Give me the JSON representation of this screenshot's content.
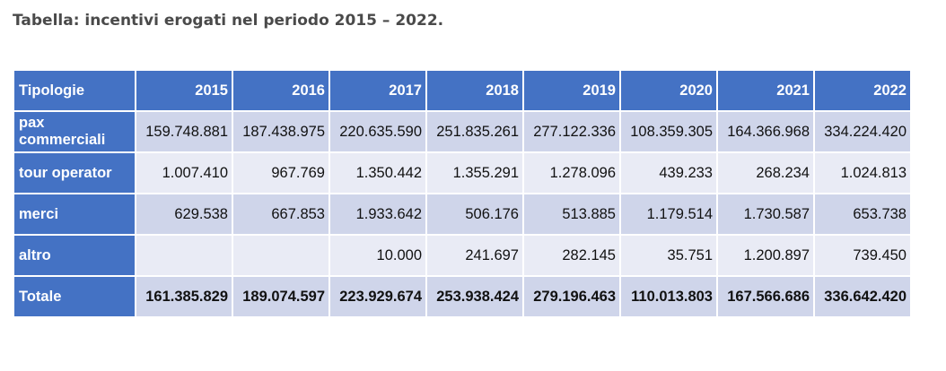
{
  "caption": "Tabella: incentivi erogati nel periodo 2015 – 2022.",
  "table": {
    "headers": [
      "Tipologie",
      "2015",
      "2016",
      "2017",
      "2018",
      "2019",
      "2020",
      "2021",
      "2022"
    ],
    "rows": [
      {
        "label": "pax commerciali",
        "values": [
          "159.748.881",
          "187.438.975",
          "220.635.590",
          "251.835.261",
          "277.122.336",
          "108.359.305",
          "164.366.968",
          "334.224.420"
        ]
      },
      {
        "label": "tour operator",
        "values": [
          "1.007.410",
          "967.769",
          "1.350.442",
          "1.355.291",
          "1.278.096",
          "439.233",
          "268.234",
          "1.024.813"
        ]
      },
      {
        "label": "merci",
        "values": [
          "629.538",
          "667.853",
          "1.933.642",
          "506.176",
          "513.885",
          "1.179.514",
          "1.730.587",
          "653.738"
        ]
      },
      {
        "label": "altro",
        "values": [
          "",
          "",
          "10.000",
          "241.697",
          "282.145",
          "35.751",
          "1.200.897",
          "739.450"
        ]
      },
      {
        "label": "Totale",
        "values": [
          "161.385.829",
          "189.074.597",
          "223.929.674",
          "253.938.424",
          "279.196.463",
          "110.013.803",
          "167.566.686",
          "336.642.420"
        ]
      }
    ]
  },
  "colors": {
    "header_bg": "#4472c4",
    "row_odd_bg": "#cfd5ea",
    "row_even_bg": "#e9ebf5",
    "caption_text": "#4a4a4a"
  }
}
